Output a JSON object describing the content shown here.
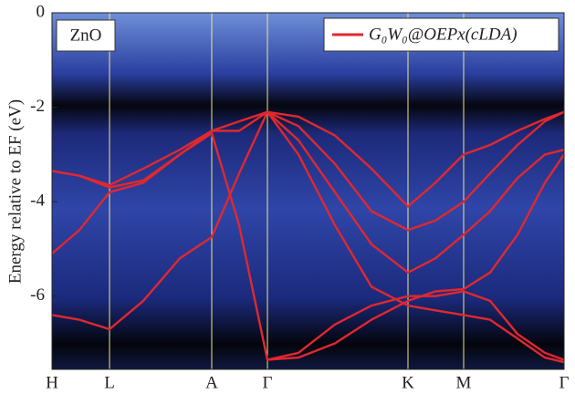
{
  "chart_data": {
    "type": "line",
    "annotation": "ZnO",
    "ylabel": "Energy relative to EF (eV)",
    "legend_label": "G₀W₀@OEPx(cLDA)",
    "legend_position": "upper right",
    "line_color": "#e0282e",
    "x": [
      0,
      30,
      63,
      100,
      140,
      175,
      205,
      236,
      270,
      310,
      350,
      390,
      420,
      451,
      480,
      510,
      540,
      561
    ],
    "xlim": [
      0,
      561
    ],
    "xticks": [
      {
        "value": 0,
        "label": "H"
      },
      {
        "value": 63,
        "label": "L"
      },
      {
        "value": 175,
        "label": "A"
      },
      {
        "value": 236,
        "label": "Γ"
      },
      {
        "value": 390,
        "label": "K"
      },
      {
        "value": 451,
        "label": "M"
      },
      {
        "value": 561,
        "label": "Γ"
      }
    ],
    "ylim": [
      -7.55,
      0
    ],
    "yticks": [
      0,
      -2,
      -4,
      -6
    ],
    "series": [
      {
        "values": [
          -3.35,
          -3.45,
          -3.65,
          -3.3,
          -2.9,
          -2.5,
          -2.3,
          -2.1,
          -2.2,
          -2.6,
          -3.3,
          -4.1,
          -3.6,
          -3.0,
          -2.8,
          -2.5,
          -2.25,
          -2.1
        ]
      },
      {
        "values": [
          -3.35,
          -3.45,
          -3.7,
          -3.55,
          -3.0,
          -2.5,
          -2.5,
          -2.1,
          -2.4,
          -3.2,
          -4.2,
          -4.6,
          -4.4,
          -4.0,
          -3.4,
          -2.8,
          -2.3,
          -2.1
        ]
      },
      {
        "values": [
          -5.1,
          -4.6,
          -3.8,
          -3.6,
          -3.0,
          -2.55,
          -4.5,
          -7.35,
          -7.2,
          -6.6,
          -6.2,
          -6.0,
          -6.0,
          -5.9,
          -6.1,
          -6.8,
          -7.2,
          -7.35
        ]
      },
      {
        "values": [
          -6.4,
          -6.5,
          -6.7,
          -6.1,
          -5.2,
          -4.75,
          -3.4,
          -2.1,
          -2.7,
          -3.8,
          -4.9,
          -5.5,
          -5.2,
          -4.7,
          -4.2,
          -3.5,
          -3.0,
          -2.9
        ]
      },
      {
        "values": [
          null,
          null,
          null,
          null,
          null,
          null,
          null,
          -2.1,
          -3.0,
          -4.5,
          -5.8,
          -6.2,
          -6.3,
          -6.4,
          -6.5,
          -6.9,
          -7.3,
          -7.4
        ]
      },
      {
        "values": [
          null,
          null,
          null,
          null,
          null,
          null,
          null,
          -7.35,
          -7.3,
          -7.0,
          -6.5,
          -6.1,
          -5.9,
          -5.85,
          -5.5,
          -4.7,
          -3.6,
          -3.0
        ]
      }
    ]
  }
}
